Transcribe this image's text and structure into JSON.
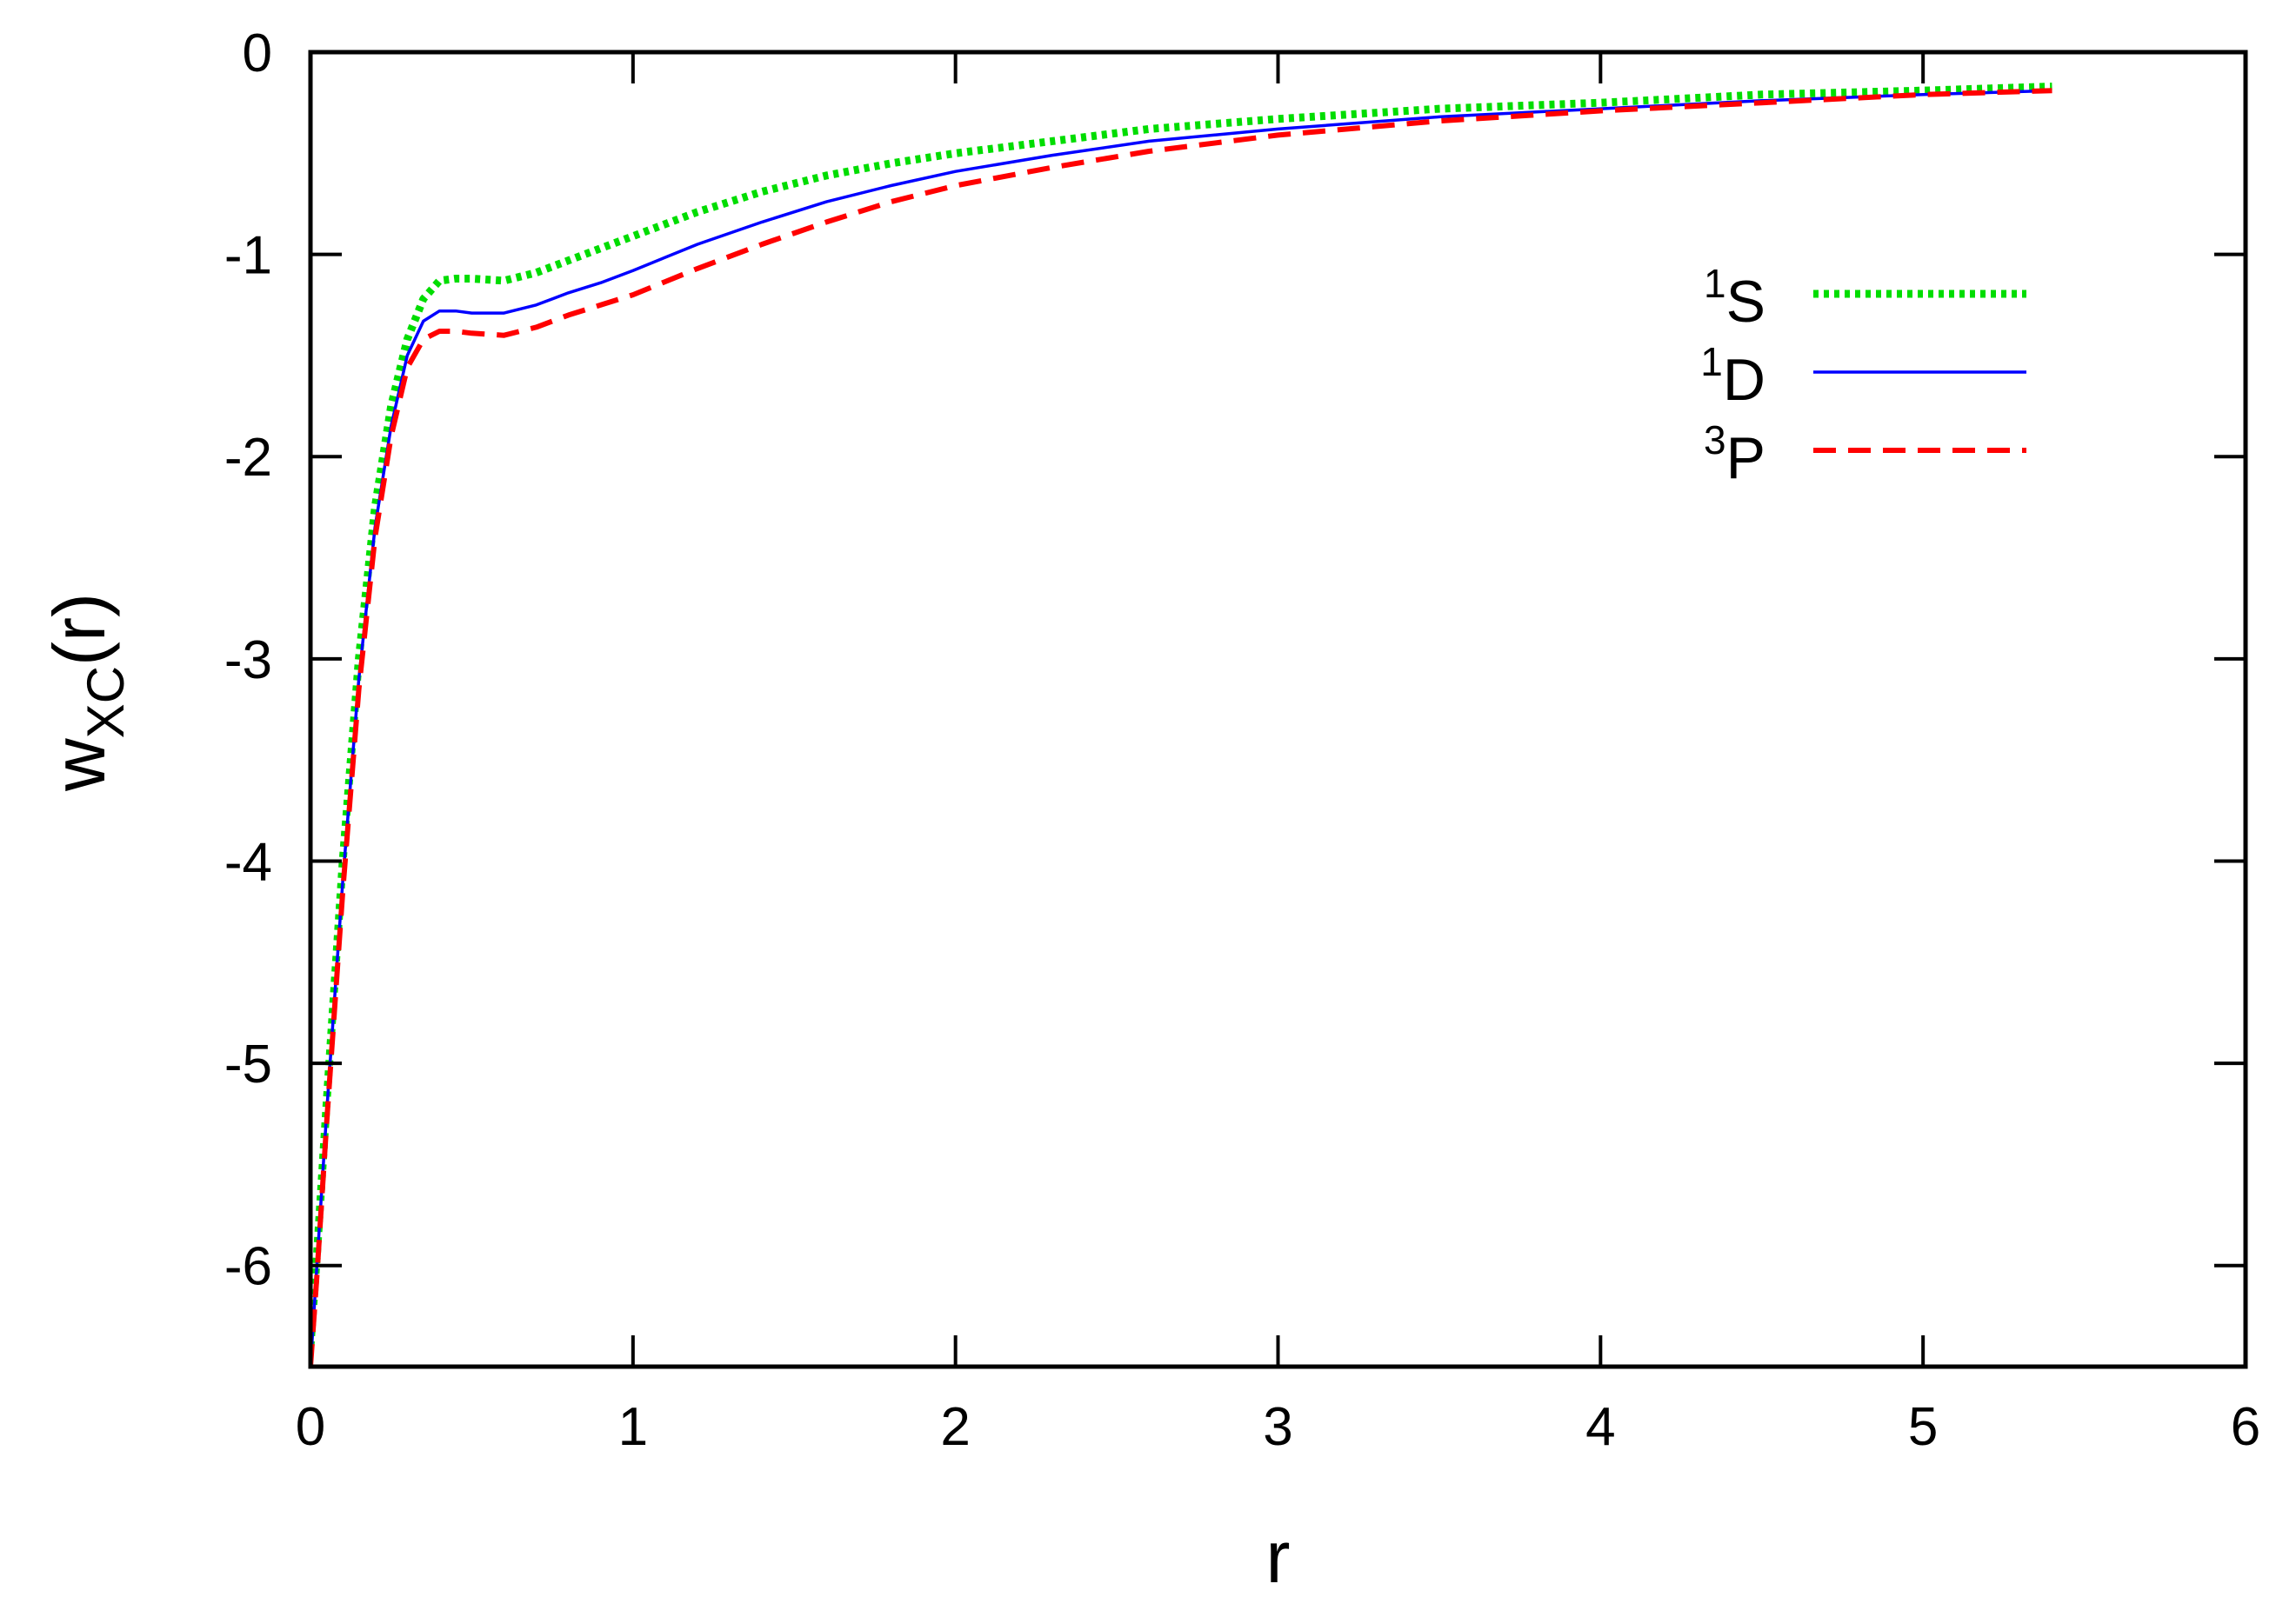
{
  "chart_data": {
    "type": "line",
    "xlabel": "r",
    "ylabel": {
      "main": "w",
      "sub": "XC",
      "suffix": "(r)"
    },
    "xlim": [
      0,
      6
    ],
    "ylim": [
      -6.5,
      0
    ],
    "xticks": [
      "0",
      "1",
      "2",
      "3",
      "4",
      "5",
      "6"
    ],
    "yticks": [
      "0",
      "-1",
      "-2",
      "-3",
      "-4",
      "-5",
      "-6"
    ],
    "grid": false,
    "legend_position": "top-right",
    "series": [
      {
        "name": "S",
        "superscript": "1",
        "color": "#00dd00",
        "style": "dotted",
        "x": [
          0.0,
          0.02,
          0.05,
          0.1,
          0.15,
          0.2,
          0.25,
          0.3,
          0.35,
          0.4,
          0.45,
          0.5,
          0.6,
          0.7,
          0.8,
          0.9,
          1.0,
          1.2,
          1.4,
          1.6,
          1.8,
          2.0,
          2.3,
          2.6,
          3.0,
          3.5,
          4.0,
          4.5,
          5.0,
          5.4
        ],
        "y": [
          -6.4,
          -5.95,
          -5.2,
          -4.0,
          -3.0,
          -2.25,
          -1.75,
          -1.42,
          -1.22,
          -1.13,
          -1.12,
          -1.12,
          -1.13,
          -1.09,
          -1.03,
          -0.97,
          -0.91,
          -0.79,
          -0.69,
          -0.61,
          -0.55,
          -0.5,
          -0.44,
          -0.38,
          -0.33,
          -0.28,
          -0.25,
          -0.21,
          -0.19,
          -0.17
        ]
      },
      {
        "name": "D",
        "superscript": "1",
        "color": "#0000ff",
        "style": "solid",
        "x": [
          0.0,
          0.02,
          0.05,
          0.1,
          0.15,
          0.2,
          0.25,
          0.3,
          0.35,
          0.4,
          0.45,
          0.5,
          0.6,
          0.7,
          0.8,
          0.9,
          1.0,
          1.2,
          1.4,
          1.6,
          1.8,
          2.0,
          2.3,
          2.6,
          3.0,
          3.5,
          4.0,
          4.5,
          5.0,
          5.4
        ],
        "y": [
          -6.5,
          -6.0,
          -5.25,
          -4.1,
          -3.1,
          -2.35,
          -1.85,
          -1.5,
          -1.33,
          -1.28,
          -1.28,
          -1.29,
          -1.29,
          -1.25,
          -1.19,
          -1.14,
          -1.08,
          -0.95,
          -0.84,
          -0.74,
          -0.66,
          -0.59,
          -0.51,
          -0.44,
          -0.38,
          -0.32,
          -0.28,
          -0.24,
          -0.21,
          -0.19
        ]
      },
      {
        "name": "P",
        "superscript": "3",
        "color": "#ff0000",
        "style": "dashed",
        "x": [
          0.0,
          0.02,
          0.05,
          0.1,
          0.15,
          0.2,
          0.25,
          0.3,
          0.35,
          0.4,
          0.45,
          0.5,
          0.6,
          0.7,
          0.8,
          0.9,
          1.0,
          1.2,
          1.4,
          1.6,
          1.8,
          2.0,
          2.3,
          2.6,
          3.0,
          3.5,
          4.0,
          4.5,
          5.0,
          5.4
        ],
        "y": [
          -6.5,
          -6.05,
          -5.3,
          -4.15,
          -3.15,
          -2.4,
          -1.9,
          -1.56,
          -1.42,
          -1.38,
          -1.38,
          -1.39,
          -1.4,
          -1.36,
          -1.3,
          -1.25,
          -1.2,
          -1.07,
          -0.95,
          -0.84,
          -0.74,
          -0.66,
          -0.57,
          -0.49,
          -0.41,
          -0.34,
          -0.29,
          -0.25,
          -0.21,
          -0.19
        ]
      }
    ]
  }
}
